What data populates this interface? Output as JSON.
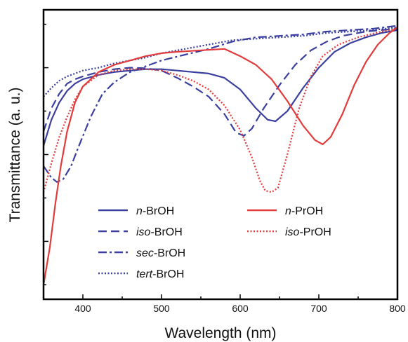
{
  "chart_data": {
    "type": "line",
    "xlabel": "Wavelength (nm)",
    "ylabel": "Transmittance (a. u.)",
    "xlim": [
      350,
      800
    ],
    "ylim": [
      0,
      100
    ],
    "x_ticks": [
      400,
      500,
      600,
      700,
      800
    ],
    "y_ticks_major": [
      20,
      50,
      80
    ],
    "y_tick_labels_shown": false,
    "grid": false,
    "legend_placement": "lower-center",
    "series": [
      {
        "name_prefix": "n",
        "name_suffix": "-BrOH",
        "color": "#3a3fa0",
        "dash": "solid",
        "points": [
          [
            350,
            53
          ],
          [
            360,
            62
          ],
          [
            370,
            68
          ],
          [
            380,
            72
          ],
          [
            390,
            74.5
          ],
          [
            400,
            76
          ],
          [
            420,
            77.5
          ],
          [
            440,
            78.5
          ],
          [
            460,
            79
          ],
          [
            480,
            79.5
          ],
          [
            500,
            79.5
          ],
          [
            520,
            79
          ],
          [
            540,
            78.5
          ],
          [
            560,
            78
          ],
          [
            580,
            76.5
          ],
          [
            600,
            72.5
          ],
          [
            620,
            66
          ],
          [
            635,
            62
          ],
          [
            645,
            61.5
          ],
          [
            660,
            65
          ],
          [
            680,
            73
          ],
          [
            700,
            80
          ],
          [
            720,
            85.5
          ],
          [
            740,
            88.5
          ],
          [
            760,
            90.5
          ],
          [
            780,
            92
          ],
          [
            800,
            93
          ]
        ]
      },
      {
        "name_prefix": "iso",
        "name_suffix": "-BrOH",
        "color": "#3a3fa0",
        "dash": "dashed",
        "points": [
          [
            350,
            58
          ],
          [
            360,
            66
          ],
          [
            370,
            71
          ],
          [
            380,
            74.5
          ],
          [
            390,
            76
          ],
          [
            400,
            77
          ],
          [
            420,
            78.5
          ],
          [
            440,
            79.5
          ],
          [
            460,
            80
          ],
          [
            480,
            79.8
          ],
          [
            500,
            79
          ],
          [
            520,
            76.5
          ],
          [
            540,
            73.5
          ],
          [
            560,
            70
          ],
          [
            580,
            64
          ],
          [
            595,
            57.5
          ],
          [
            605,
            56.5
          ],
          [
            615,
            59
          ],
          [
            630,
            66
          ],
          [
            650,
            74
          ],
          [
            670,
            81
          ],
          [
            690,
            86
          ],
          [
            710,
            89
          ],
          [
            730,
            91
          ],
          [
            760,
            92.5
          ],
          [
            800,
            93.5
          ]
        ]
      },
      {
        "name_prefix": "sec",
        "name_suffix": "-BrOH",
        "color": "#3a3fa0",
        "dash": "dashdot",
        "points": [
          [
            350,
            46
          ],
          [
            360,
            42
          ],
          [
            367,
            40.5
          ],
          [
            375,
            41.5
          ],
          [
            385,
            46
          ],
          [
            395,
            53
          ],
          [
            410,
            63
          ],
          [
            425,
            71
          ],
          [
            440,
            75
          ],
          [
            460,
            78.5
          ],
          [
            480,
            80.5
          ],
          [
            500,
            82.5
          ],
          [
            530,
            84.5
          ],
          [
            560,
            86.5
          ],
          [
            590,
            89
          ],
          [
            620,
            90.5
          ],
          [
            650,
            91
          ],
          [
            680,
            91.5
          ],
          [
            710,
            92.5
          ],
          [
            740,
            93
          ],
          [
            770,
            93.5
          ],
          [
            800,
            94.5
          ]
        ]
      },
      {
        "name_prefix": "tert",
        "name_suffix": "-BrOH",
        "color": "#3a3fa0",
        "dash": "dotted",
        "points": [
          [
            350,
            70
          ],
          [
            360,
            73
          ],
          [
            370,
            75.5
          ],
          [
            380,
            77
          ],
          [
            390,
            78
          ],
          [
            400,
            79
          ],
          [
            420,
            80
          ],
          [
            440,
            81.5
          ],
          [
            460,
            82.5
          ],
          [
            480,
            83.5
          ],
          [
            500,
            85
          ],
          [
            530,
            86.5
          ],
          [
            560,
            88
          ],
          [
            590,
            89.5
          ],
          [
            620,
            90
          ],
          [
            650,
            90.5
          ],
          [
            680,
            91
          ],
          [
            710,
            92
          ],
          [
            740,
            92.5
          ],
          [
            770,
            93
          ],
          [
            800,
            94
          ]
        ]
      },
      {
        "name_prefix": "n",
        "name_suffix": "-PrOH",
        "color": "#e23b3b",
        "dash": "solid",
        "points": [
          [
            350,
            5
          ],
          [
            358,
            18
          ],
          [
            365,
            33
          ],
          [
            372,
            46
          ],
          [
            380,
            58
          ],
          [
            390,
            68
          ],
          [
            400,
            73.5
          ],
          [
            420,
            78.5
          ],
          [
            440,
            81
          ],
          [
            460,
            82.5
          ],
          [
            480,
            84
          ],
          [
            500,
            85
          ],
          [
            520,
            85.5
          ],
          [
            550,
            86
          ],
          [
            580,
            86.5
          ],
          [
            600,
            84
          ],
          [
            620,
            81
          ],
          [
            640,
            76
          ],
          [
            660,
            68.5
          ],
          [
            680,
            60
          ],
          [
            695,
            55
          ],
          [
            705,
            53.5
          ],
          [
            715,
            56
          ],
          [
            730,
            64
          ],
          [
            745,
            74
          ],
          [
            760,
            82
          ],
          [
            775,
            88
          ],
          [
            790,
            92
          ],
          [
            800,
            94
          ]
        ]
      },
      {
        "name_prefix": "iso",
        "name_suffix": "-PrOH",
        "color": "#e23b3b",
        "dash": "dotted",
        "points": [
          [
            350,
            37
          ],
          [
            360,
            47
          ],
          [
            370,
            56
          ],
          [
            380,
            63
          ],
          [
            390,
            69
          ],
          [
            400,
            73.5
          ],
          [
            420,
            77.5
          ],
          [
            440,
            79
          ],
          [
            460,
            79.5
          ],
          [
            480,
            79.5
          ],
          [
            500,
            79
          ],
          [
            520,
            77.5
          ],
          [
            540,
            75.5
          ],
          [
            560,
            72.5
          ],
          [
            580,
            67
          ],
          [
            600,
            58.5
          ],
          [
            615,
            49
          ],
          [
            625,
            41
          ],
          [
            632,
            37.5
          ],
          [
            640,
            37
          ],
          [
            648,
            38.5
          ],
          [
            660,
            50
          ],
          [
            675,
            66
          ],
          [
            690,
            77
          ],
          [
            705,
            84
          ],
          [
            725,
            88
          ],
          [
            750,
            90.5
          ],
          [
            780,
            92.5
          ],
          [
            800,
            93.5
          ]
        ]
      }
    ]
  }
}
